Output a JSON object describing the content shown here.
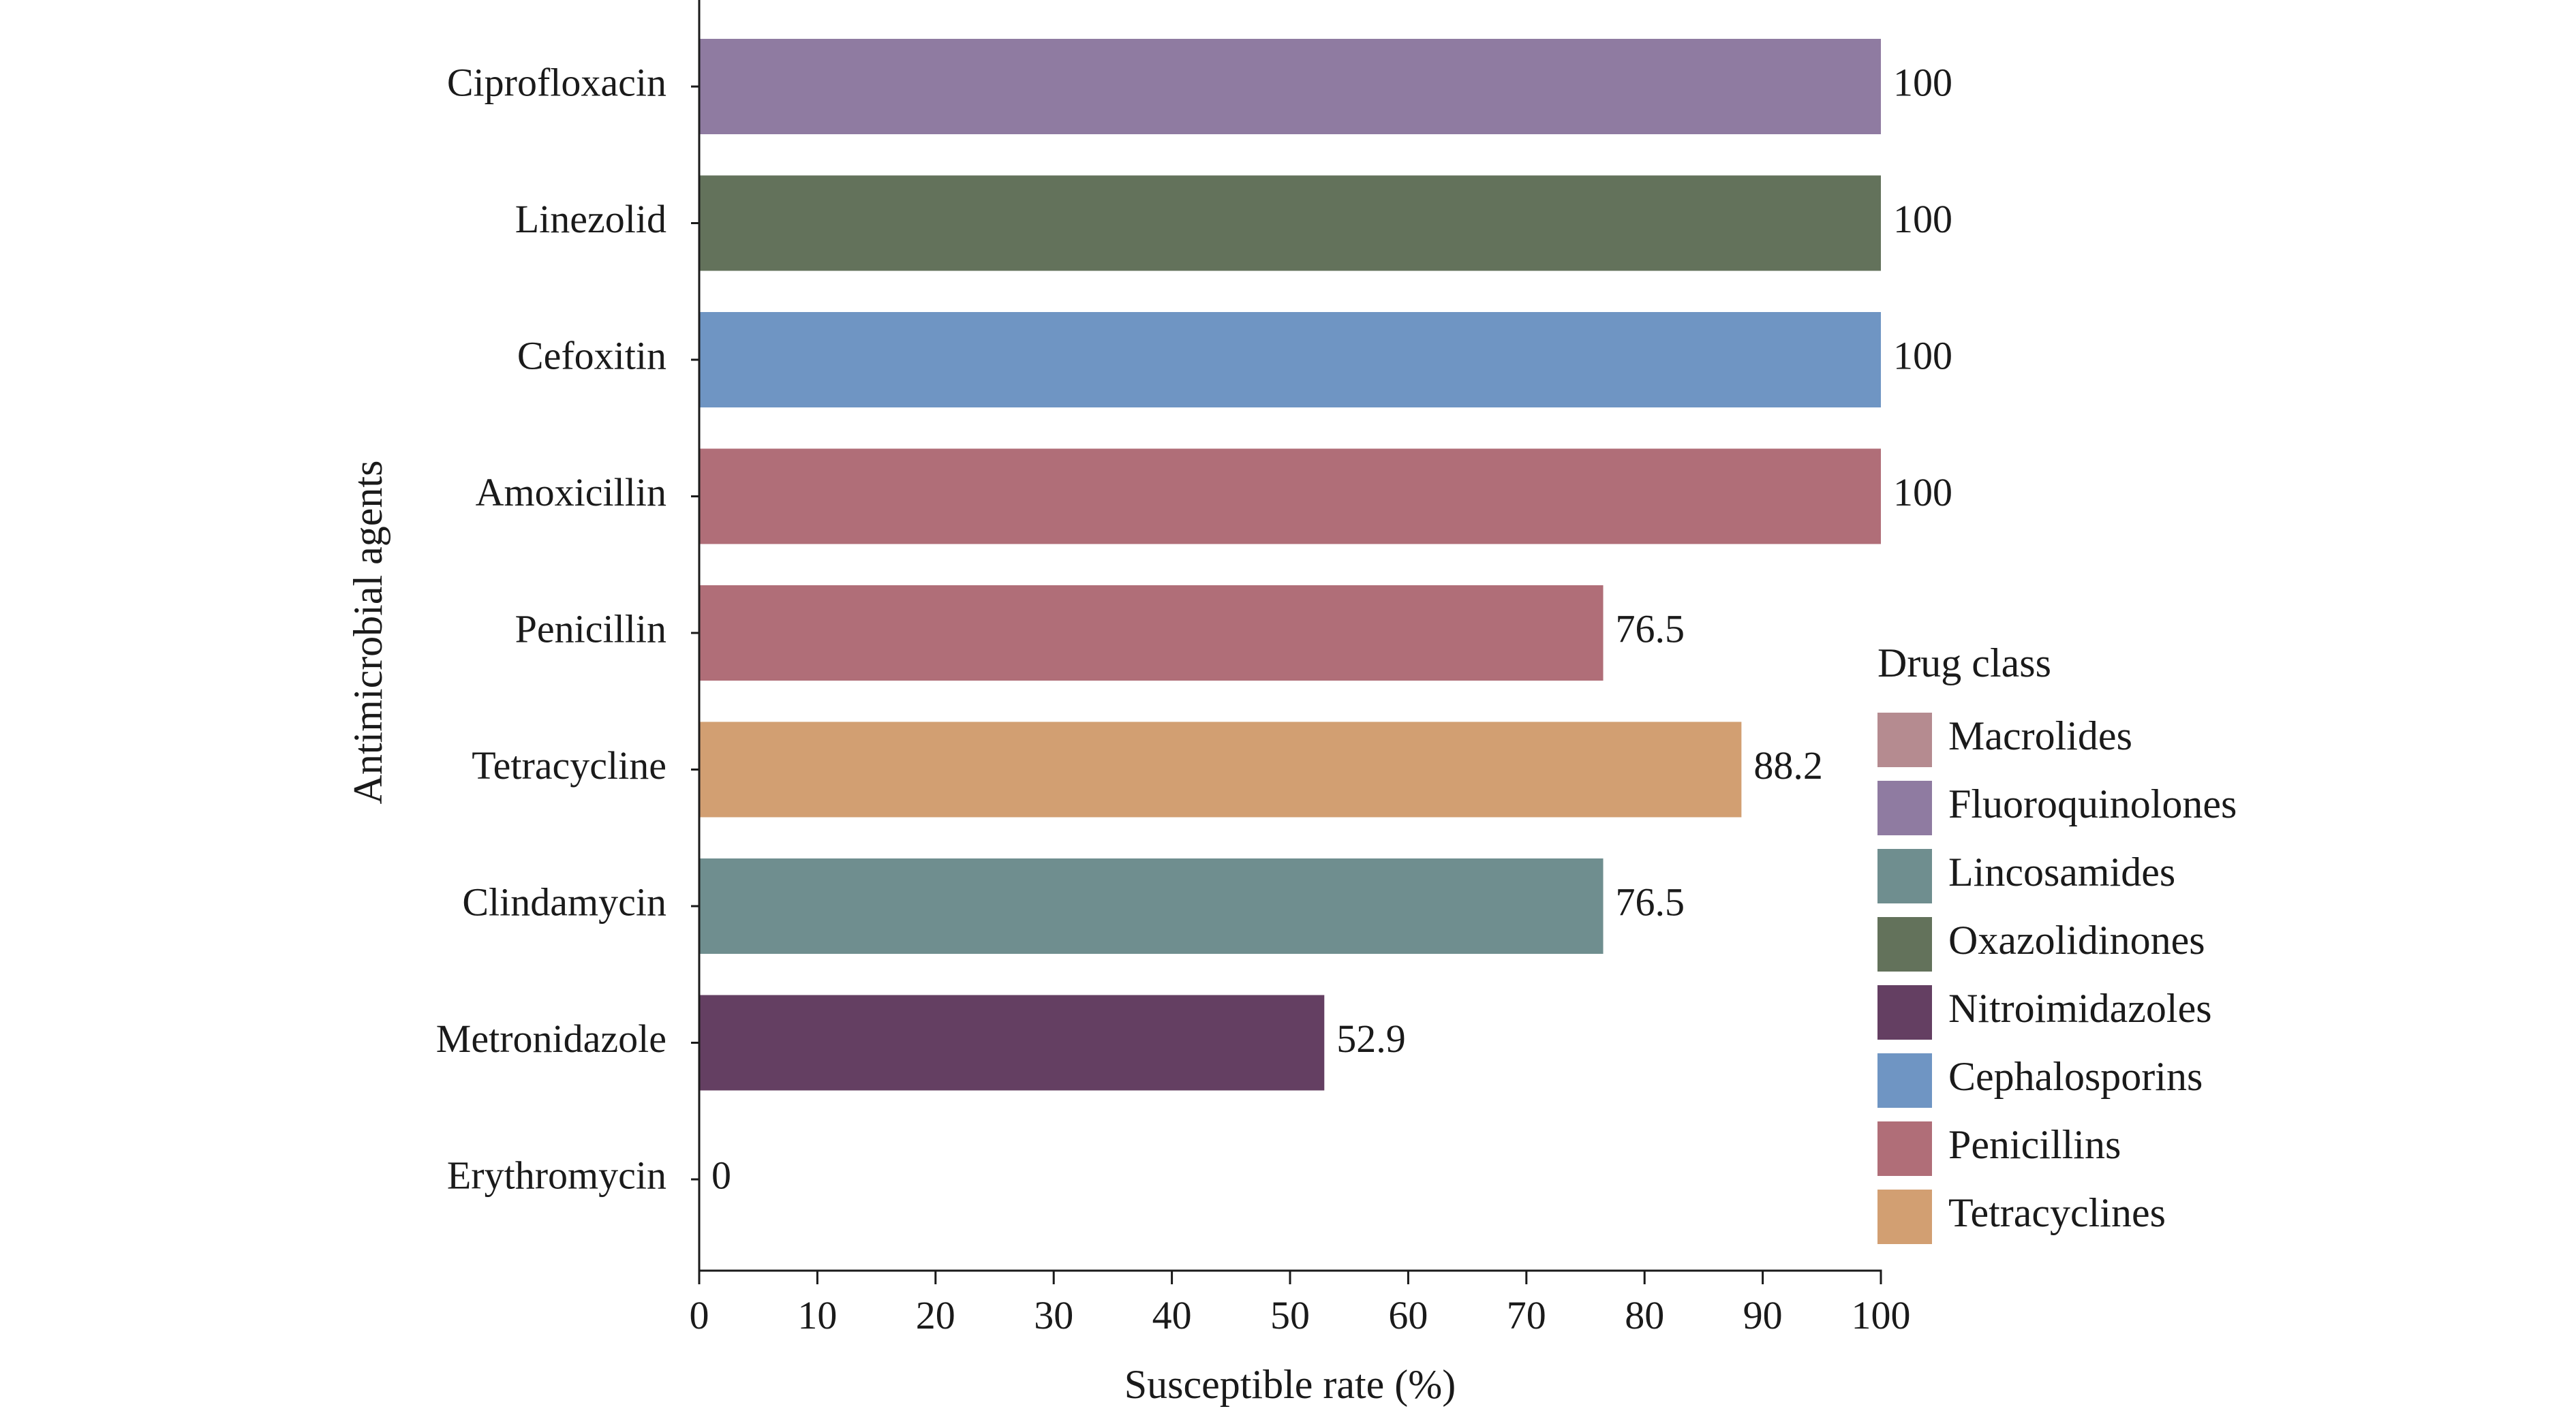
{
  "chart_data": {
    "type": "bar",
    "orientation": "horizontal",
    "xlabel": "Susceptible rate (%)",
    "ylabel": "Antimicrobial agents",
    "xlim": [
      0,
      100
    ],
    "xticks": [
      0,
      10,
      20,
      30,
      40,
      50,
      60,
      70,
      80,
      90,
      100
    ],
    "grid": false,
    "legend_position": "right",
    "categories": [
      "Ciprofloxacin",
      "Linezolid",
      "Cefoxitin",
      "Amoxicillin",
      "Penicillin",
      "Tetracycline",
      "Clindamycin",
      "Metronidazole",
      "Erythromycin"
    ],
    "values": [
      100,
      100,
      100,
      100,
      76.5,
      88.2,
      76.5,
      52.9,
      0
    ],
    "value_labels": [
      "100",
      "100",
      "100",
      "100",
      "76.5",
      "88.2",
      "76.5",
      "52.9",
      "0"
    ],
    "bar_classes": [
      "Fluoroquinolones",
      "Oxazolidinones",
      "Cephalosporins",
      "Penicillins",
      "Penicillins",
      "Tetracyclines",
      "Lincosamides",
      "Nitroimidazoles",
      "Macrolides"
    ],
    "legend": {
      "title": "Drug class",
      "items": [
        {
          "label": "Macrolides",
          "color": "#b58b90"
        },
        {
          "label": "Fluoroquinolones",
          "color": "#8f7ba1"
        },
        {
          "label": "Lincosamides",
          "color": "#6f8e8f"
        },
        {
          "label": "Oxazolidinones",
          "color": "#63725b"
        },
        {
          "label": "Nitroimidazoles",
          "color": "#643f62"
        },
        {
          "label": "Cephalosporins",
          "color": "#6f95c3"
        },
        {
          "label": "Penicillins",
          "color": "#b06e78"
        },
        {
          "label": "Tetracyclines",
          "color": "#d29f72"
        }
      ]
    }
  }
}
